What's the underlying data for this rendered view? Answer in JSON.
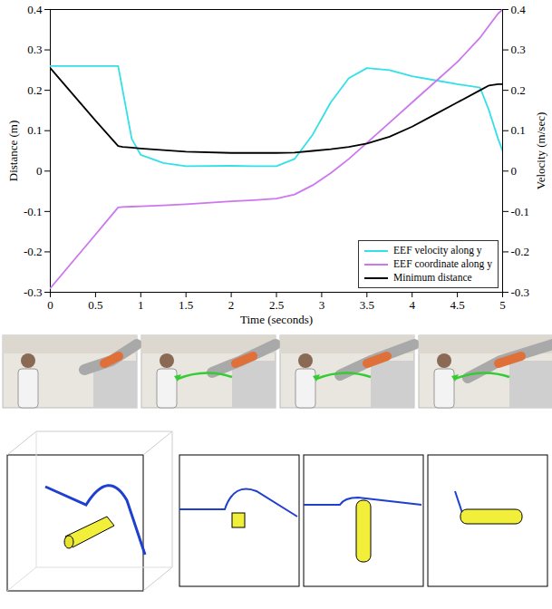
{
  "chart_data": {
    "type": "line",
    "x_label": "Time (seconds)",
    "y_label": "Distance (m)",
    "y2_label": "Velocity (m/sec)",
    "x": [
      0,
      0.5,
      0.75,
      0.8,
      0.9,
      1,
      1.25,
      1.5,
      2,
      2.25,
      2.5,
      2.7,
      2.9,
      3.1,
      3.3,
      3.5,
      3.75,
      4,
      4.25,
      4.5,
      4.75,
      4.85,
      4.95,
      5
    ],
    "series": [
      {
        "name": "EEF velocity along y",
        "color": "#33e0e8",
        "axis": "y2",
        "values": [
          0.26,
          0.26,
          0.26,
          0.2,
          0.08,
          0.04,
          0.02,
          0.012,
          0.013,
          0.012,
          0.012,
          0.03,
          0.09,
          0.17,
          0.23,
          0.255,
          0.25,
          0.235,
          0.225,
          0.215,
          0.207,
          0.15,
          0.08,
          0.05
        ]
      },
      {
        "name": "EEF coordinate along y",
        "color": "#cc77ee",
        "values": [
          -0.29,
          -0.157,
          -0.09,
          -0.089,
          -0.088,
          -0.087,
          -0.085,
          -0.082,
          -0.075,
          -0.072,
          -0.068,
          -0.058,
          -0.035,
          -0.005,
          0.03,
          0.07,
          0.12,
          0.17,
          0.22,
          0.27,
          0.33,
          0.36,
          0.39,
          0.4
        ]
      },
      {
        "name": "Minimum distance",
        "color": "#000000",
        "values": [
          0.255,
          0.125,
          0.062,
          0.06,
          0.058,
          0.056,
          0.052,
          0.048,
          0.045,
          0.045,
          0.045,
          0.046,
          0.05,
          0.054,
          0.06,
          0.068,
          0.085,
          0.11,
          0.14,
          0.17,
          0.2,
          0.212,
          0.215,
          0.215
        ]
      }
    ],
    "xlim": [
      0,
      5
    ],
    "xticks": [
      0,
      0.5,
      1,
      1.5,
      2,
      2.5,
      3,
      3.5,
      4,
      4.5,
      5
    ],
    "ylim": [
      -0.3,
      0.4
    ],
    "yticks": [
      -0.3,
      -0.2,
      -0.1,
      0,
      0.1,
      0.2,
      0.3,
      0.4
    ],
    "y2lim": [
      -0.3,
      0.4
    ],
    "y2ticks": [
      -0.3,
      -0.2,
      -0.1,
      0,
      0.1,
      0.2,
      0.3,
      0.4
    ],
    "legend": "lower right",
    "grid": false
  }
}
